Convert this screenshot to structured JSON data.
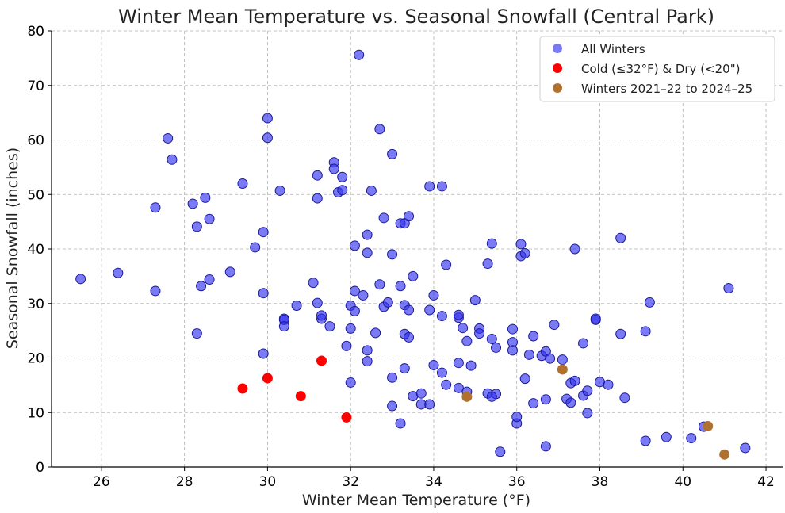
{
  "chart_data": {
    "type": "scatter",
    "title": "Winter Mean Temperature vs. Seasonal Snowfall (Central Park)",
    "xlabel": "Winter Mean Temperature (°F)",
    "ylabel": "Seasonal Snowfall (inches)",
    "xlim": [
      24.8,
      42.4
    ],
    "ylim": [
      0,
      80
    ],
    "xticks": [
      26,
      28,
      30,
      32,
      34,
      36,
      38,
      40,
      42
    ],
    "yticks": [
      0,
      10,
      20,
      30,
      40,
      50,
      60,
      70,
      80
    ],
    "grid": true,
    "legend_position": "top-right",
    "series": [
      {
        "name": "All Winters",
        "color": "#3333ee",
        "points": [
          [
            25.5,
            34.5
          ],
          [
            26.4,
            35.6
          ],
          [
            27.3,
            47.6
          ],
          [
            27.3,
            32.3
          ],
          [
            27.6,
            60.3
          ],
          [
            27.7,
            56.4
          ],
          [
            28.2,
            48.3
          ],
          [
            28.3,
            44.1
          ],
          [
            28.3,
            24.5
          ],
          [
            28.4,
            33.2
          ],
          [
            28.5,
            49.4
          ],
          [
            28.6,
            45.5
          ],
          [
            28.6,
            34.4
          ],
          [
            29.1,
            35.8
          ],
          [
            29.4,
            52.0
          ],
          [
            29.7,
            40.3
          ],
          [
            29.9,
            43.1
          ],
          [
            29.9,
            31.9
          ],
          [
            29.9,
            20.8
          ],
          [
            30.0,
            64.0
          ],
          [
            30.0,
            60.4
          ],
          [
            30.3,
            50.7
          ],
          [
            30.4,
            27.2
          ],
          [
            30.4,
            27.0
          ],
          [
            30.4,
            25.8
          ],
          [
            30.7,
            29.6
          ],
          [
            31.1,
            33.8
          ],
          [
            31.2,
            53.5
          ],
          [
            31.2,
            49.3
          ],
          [
            31.2,
            30.1
          ],
          [
            31.3,
            27.2
          ],
          [
            31.3,
            27.8
          ],
          [
            31.5,
            25.8
          ],
          [
            31.6,
            55.9
          ],
          [
            31.6,
            54.7
          ],
          [
            31.7,
            50.4
          ],
          [
            31.8,
            53.2
          ],
          [
            31.8,
            50.8
          ],
          [
            31.9,
            22.2
          ],
          [
            32.0,
            29.6
          ],
          [
            32.0,
            25.4
          ],
          [
            32.0,
            15.5
          ],
          [
            32.1,
            40.6
          ],
          [
            32.1,
            32.3
          ],
          [
            32.1,
            28.6
          ],
          [
            32.2,
            75.6
          ],
          [
            32.3,
            31.5
          ],
          [
            32.4,
            42.6
          ],
          [
            32.4,
            39.3
          ],
          [
            32.4,
            21.4
          ],
          [
            32.4,
            19.4
          ],
          [
            32.5,
            50.7
          ],
          [
            32.6,
            24.6
          ],
          [
            32.7,
            33.5
          ],
          [
            32.7,
            62.0
          ],
          [
            32.8,
            45.7
          ],
          [
            32.8,
            29.4
          ],
          [
            32.9,
            30.2
          ],
          [
            33.0,
            57.4
          ],
          [
            33.0,
            39.0
          ],
          [
            33.0,
            16.4
          ],
          [
            33.0,
            11.2
          ],
          [
            33.2,
            33.2
          ],
          [
            33.2,
            44.7
          ],
          [
            33.3,
            29.7
          ],
          [
            33.3,
            44.7
          ],
          [
            33.3,
            24.4
          ],
          [
            33.3,
            18.1
          ],
          [
            33.2,
            8.0
          ],
          [
            33.4,
            46.0
          ],
          [
            33.4,
            28.8
          ],
          [
            33.4,
            23.8
          ],
          [
            33.5,
            35.0
          ],
          [
            33.5,
            13.0
          ],
          [
            33.7,
            13.5
          ],
          [
            33.7,
            11.5
          ],
          [
            33.9,
            51.5
          ],
          [
            33.9,
            28.8
          ],
          [
            33.9,
            11.5
          ],
          [
            34.0,
            31.5
          ],
          [
            34.0,
            18.7
          ],
          [
            34.2,
            51.5
          ],
          [
            34.2,
            27.7
          ],
          [
            34.2,
            17.3
          ],
          [
            34.3,
            37.1
          ],
          [
            34.3,
            15.1
          ],
          [
            34.6,
            14.5
          ],
          [
            34.6,
            27.4
          ],
          [
            34.6,
            27.9
          ],
          [
            34.7,
            25.5
          ],
          [
            34.6,
            19.1
          ],
          [
            34.8,
            13.8
          ],
          [
            34.8,
            23.1
          ],
          [
            34.9,
            18.6
          ],
          [
            35.0,
            30.6
          ],
          [
            35.1,
            25.4
          ],
          [
            35.1,
            24.5
          ],
          [
            35.3,
            37.3
          ],
          [
            35.4,
            41.0
          ],
          [
            35.3,
            13.5
          ],
          [
            35.4,
            23.5
          ],
          [
            35.5,
            21.9
          ],
          [
            35.5,
            13.4
          ],
          [
            35.4,
            12.9
          ],
          [
            35.6,
            2.8
          ],
          [
            35.9,
            22.9
          ],
          [
            35.9,
            21.4
          ],
          [
            35.9,
            25.3
          ],
          [
            36.0,
            8.0
          ],
          [
            36.0,
            9.2
          ],
          [
            36.1,
            40.9
          ],
          [
            36.1,
            38.7
          ],
          [
            36.2,
            39.2
          ],
          [
            36.2,
            16.2
          ],
          [
            36.3,
            20.6
          ],
          [
            36.4,
            24.0
          ],
          [
            36.4,
            11.7
          ],
          [
            36.6,
            20.4
          ],
          [
            36.7,
            21.2
          ],
          [
            36.8,
            19.9
          ],
          [
            36.7,
            12.4
          ],
          [
            36.7,
            3.8
          ],
          [
            36.9,
            26.1
          ],
          [
            37.1,
            19.7
          ],
          [
            37.2,
            12.5
          ],
          [
            37.3,
            11.8
          ],
          [
            37.3,
            15.4
          ],
          [
            37.4,
            15.8
          ],
          [
            37.4,
            40.0
          ],
          [
            37.6,
            22.7
          ],
          [
            37.6,
            13.1
          ],
          [
            37.7,
            14.0
          ],
          [
            37.7,
            9.9
          ],
          [
            37.9,
            27.0
          ],
          [
            37.9,
            27.2
          ],
          [
            38.0,
            15.6
          ],
          [
            38.2,
            15.1
          ],
          [
            38.5,
            42.0
          ],
          [
            38.5,
            24.4
          ],
          [
            38.6,
            12.7
          ],
          [
            39.1,
            24.9
          ],
          [
            39.2,
            30.2
          ],
          [
            39.1,
            4.8
          ],
          [
            39.6,
            5.5
          ],
          [
            40.2,
            5.3
          ],
          [
            40.5,
            7.4
          ],
          [
            41.1,
            32.8
          ],
          [
            41.5,
            3.5
          ]
        ]
      },
      {
        "name": "Cold (≤32°F) & Dry (<20\")",
        "color": "#ff0000",
        "points": [
          [
            29.4,
            14.4
          ],
          [
            30.0,
            16.3
          ],
          [
            30.8,
            13.0
          ],
          [
            31.3,
            19.5
          ],
          [
            31.9,
            9.1
          ]
        ]
      },
      {
        "name": "Winters 2021–22 to 2024–25",
        "color": "#b07030",
        "points": [
          [
            34.8,
            12.9
          ],
          [
            37.1,
            17.9
          ],
          [
            40.6,
            7.5
          ],
          [
            41.0,
            2.3
          ]
        ]
      }
    ]
  }
}
